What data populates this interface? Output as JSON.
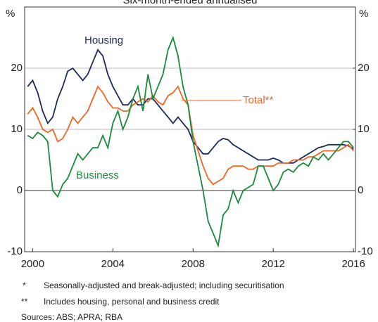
{
  "chart_data": {
    "type": "line",
    "subtitle": "Six-month-ended annualised",
    "y_label": "%",
    "y2_label": "%",
    "xlim": [
      1999.6,
      2016.1
    ],
    "xticks": [
      2000,
      2004,
      2008,
      2012,
      2016
    ],
    "ylim": [
      -10,
      30
    ],
    "yticks": [
      -10,
      0,
      10,
      20
    ],
    "y2lim": [
      -10,
      30
    ],
    "y2ticks": [
      -10,
      0,
      10,
      20
    ],
    "grid": true,
    "x": [
      1999.75,
      2000,
      2000.25,
      2000.5,
      2000.75,
      2001,
      2001.25,
      2001.5,
      2001.75,
      2002,
      2002.25,
      2002.5,
      2002.75,
      2003,
      2003.25,
      2003.5,
      2003.75,
      2004,
      2004.25,
      2004.5,
      2004.75,
      2005,
      2005.25,
      2005.5,
      2005.75,
      2006,
      2006.25,
      2006.5,
      2006.75,
      2007,
      2007.25,
      2007.5,
      2007.75,
      2008,
      2008.25,
      2008.5,
      2008.75,
      2009,
      2009.25,
      2009.5,
      2009.75,
      2010,
      2010.25,
      2010.5,
      2010.75,
      2011,
      2011.25,
      2011.5,
      2011.75,
      2012,
      2012.25,
      2012.5,
      2012.75,
      2013,
      2013.25,
      2013.5,
      2013.75,
      2014,
      2014.25,
      2014.5,
      2014.75,
      2015,
      2015.25,
      2015.5,
      2015.75,
      2016
    ],
    "series": [
      {
        "name": "Housing",
        "color": "#1c2a5c",
        "values": [
          17,
          18,
          16,
          13,
          11,
          12,
          15,
          17,
          19.5,
          20,
          19,
          18,
          19,
          21,
          23,
          22,
          19,
          17,
          15.5,
          14,
          14,
          15,
          14,
          14,
          15,
          15,
          14,
          13,
          12,
          11,
          12,
          11,
          10,
          8,
          7,
          6,
          6,
          7,
          8,
          8.5,
          8.3,
          7.5,
          7,
          6.5,
          6,
          5.5,
          5,
          5,
          5,
          5.3,
          5,
          4.5,
          4.5,
          4.5,
          5,
          5.5,
          6,
          6.5,
          7,
          7.2,
          7.5,
          7.5,
          7.5,
          7.5,
          7.3,
          6.8
        ]
      },
      {
        "name": "Total**",
        "color": "#f26522",
        "values": [
          12.5,
          13.5,
          12,
          10,
          9.5,
          10,
          8,
          8.5,
          10,
          12,
          11,
          12,
          13,
          15,
          17,
          16,
          14.5,
          13.5,
          13.5,
          13,
          13,
          14,
          14.5,
          15,
          14.5,
          15.5,
          14.5,
          14,
          15.5,
          16,
          17,
          15,
          14,
          9,
          6.5,
          4,
          2,
          1,
          1.5,
          2,
          3.5,
          4,
          4,
          4,
          3.5,
          3.5,
          4,
          4,
          4,
          4,
          4.5,
          4.5,
          4.5,
          5,
          5,
          5,
          5.5,
          5.5,
          6,
          6.5,
          6.5,
          6.5,
          6.5,
          7,
          7.5,
          6.5
        ]
      },
      {
        "name": "Business",
        "color": "#1a8a3c",
        "values": [
          9,
          8.5,
          9.5,
          9,
          8,
          0,
          -1,
          1,
          2,
          4,
          6,
          5,
          6,
          7,
          7,
          9,
          7,
          11,
          13,
          10,
          12,
          15,
          17,
          13,
          19,
          15,
          17,
          19,
          23,
          25,
          22,
          17,
          14,
          8,
          4,
          0,
          -5,
          -7,
          -9,
          -4,
          -3,
          0,
          -2,
          0,
          0.5,
          1,
          4,
          4,
          2,
          0,
          1,
          3,
          3.5,
          3,
          4,
          4.5,
          4,
          5.5,
          5,
          6,
          5,
          6,
          7,
          8,
          8,
          7
        ]
      }
    ],
    "notes": [
      "*",
      "Seasonally-adjusted and break-adjusted; including securitisation",
      "**",
      "Includes housing, personal and business credit"
    ],
    "sources": "Sources:  ABS; APRA; RBA"
  }
}
